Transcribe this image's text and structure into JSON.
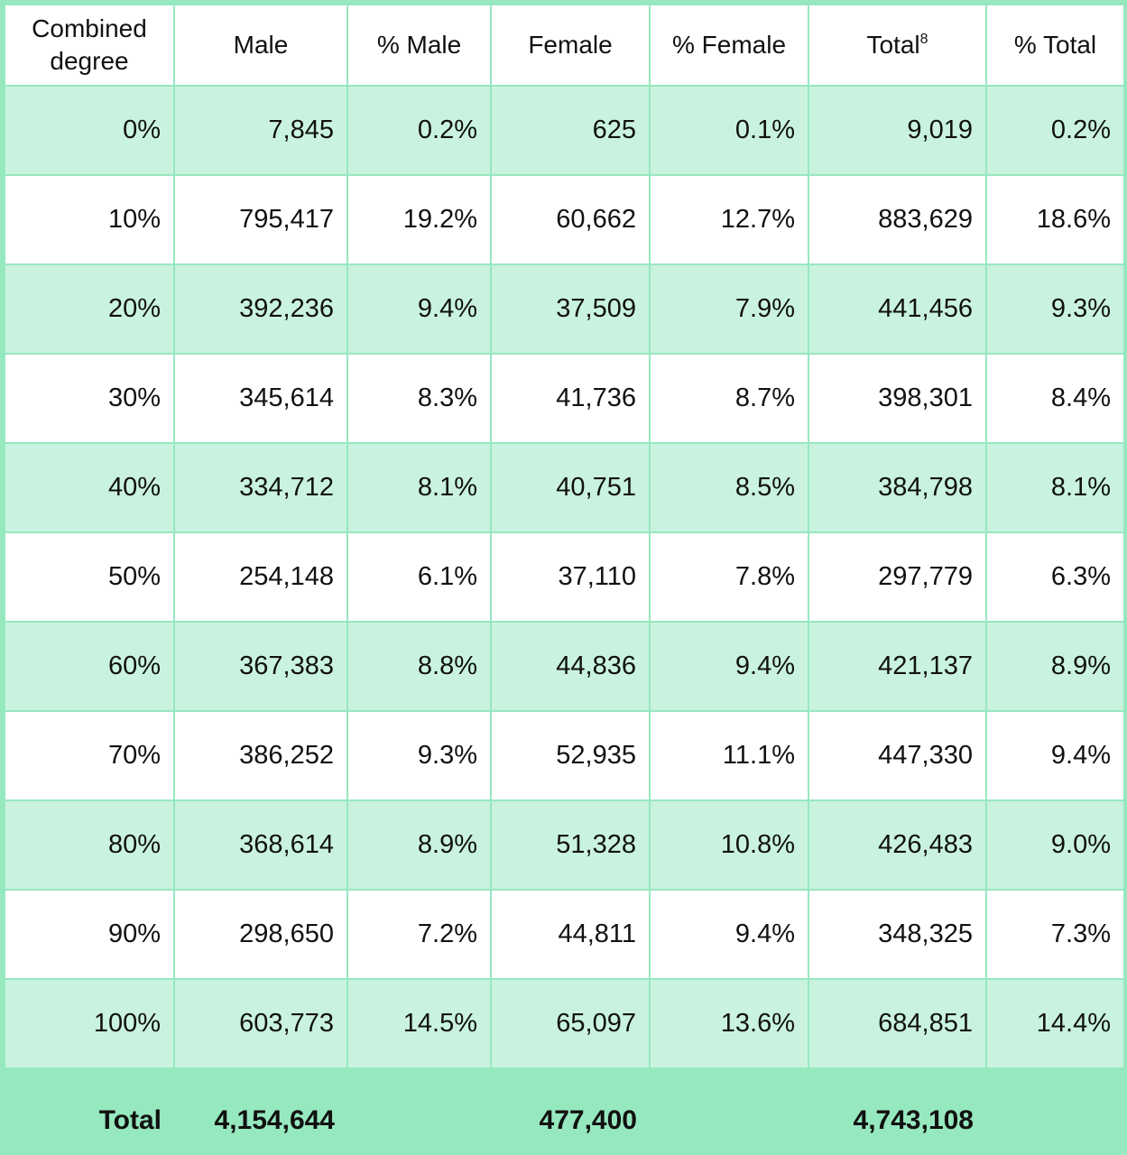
{
  "chart_data": {
    "type": "table",
    "columns": [
      "Combined degree",
      "Male",
      "% Male",
      "Female",
      "% Female",
      "Total",
      "% Total"
    ],
    "header_notes": {
      "Total": "8"
    },
    "rows": [
      [
        "0%",
        "7,845",
        "0.2%",
        "625",
        "0.1%",
        "9,019",
        "0.2%"
      ],
      [
        "10%",
        "795,417",
        "19.2%",
        "60,662",
        "12.7%",
        "883,629",
        "18.6%"
      ],
      [
        "20%",
        "392,236",
        "9.4%",
        "37,509",
        "7.9%",
        "441,456",
        "9.3%"
      ],
      [
        "30%",
        "345,614",
        "8.3%",
        "41,736",
        "8.7%",
        "398,301",
        "8.4%"
      ],
      [
        "40%",
        "334,712",
        "8.1%",
        "40,751",
        "8.5%",
        "384,798",
        "8.1%"
      ],
      [
        "50%",
        "254,148",
        "6.1%",
        "37,110",
        "7.8%",
        "297,779",
        "6.3%"
      ],
      [
        "60%",
        "367,383",
        "8.8%",
        "44,836",
        "9.4%",
        "421,137",
        "8.9%"
      ],
      [
        "70%",
        "386,252",
        "9.3%",
        "52,935",
        "11.1%",
        "447,330",
        "9.4%"
      ],
      [
        "80%",
        "368,614",
        "8.9%",
        "51,328",
        "10.8%",
        "426,483",
        "9.0%"
      ],
      [
        "90%",
        "298,650",
        "7.2%",
        "44,811",
        "9.4%",
        "348,325",
        "7.3%"
      ],
      [
        "100%",
        "603,773",
        "14.5%",
        "65,097",
        "13.6%",
        "684,851",
        "14.4%"
      ]
    ],
    "totals": [
      "Total",
      "4,154,644",
      "",
      "477,400",
      "",
      "4,743,108",
      ""
    ]
  },
  "colors": {
    "border": "#96e8bf",
    "band": "#c9f3de",
    "white": "#ffffff",
    "footer": "#96e8bf"
  }
}
